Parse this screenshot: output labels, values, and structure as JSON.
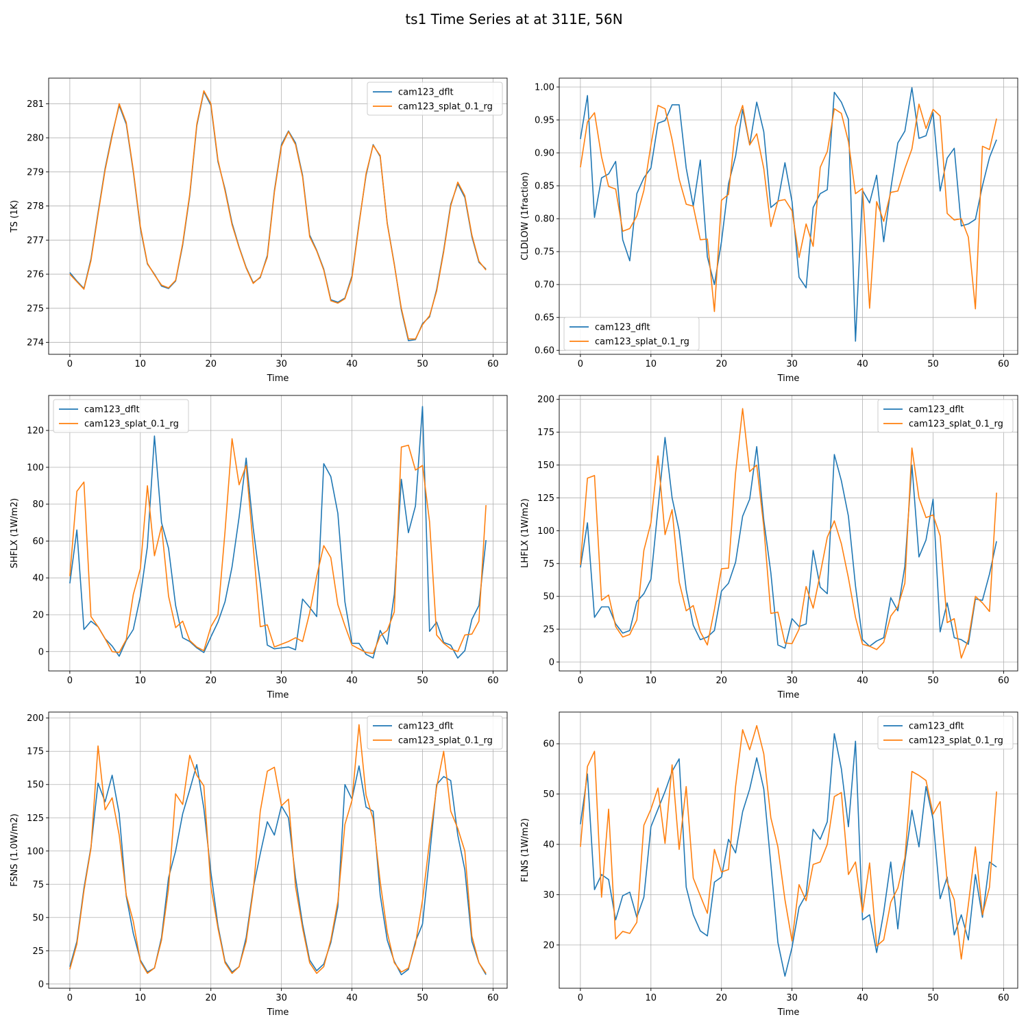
{
  "figure": {
    "title": "ts1 Time Series at at 311E, 56N"
  },
  "colors": {
    "series1": "#1f77b4",
    "series2": "#ff7f0e",
    "grid": "#b0b0b0"
  },
  "chart_data": [
    {
      "type": "line",
      "ylabel": "TS (1K)",
      "xlabel": "Time",
      "legend": "top-right",
      "xlim": [
        -3,
        62
      ],
      "ylim": [
        273.65,
        281.75
      ],
      "xticks": [
        0,
        10,
        20,
        30,
        40,
        50,
        60
      ],
      "yticks": [
        274,
        275,
        276,
        277,
        278,
        279,
        280,
        281
      ],
      "grid": true,
      "series": [
        {
          "name": "cam123_dflt",
          "values": [
            276.05,
            275.8,
            275.58,
            276.45,
            277.8,
            279.1,
            280.1,
            280.95,
            280.4,
            279.0,
            277.35,
            276.3,
            276.0,
            275.65,
            275.58,
            275.8,
            276.85,
            278.3,
            280.35,
            281.35,
            280.95,
            279.3,
            278.5,
            277.5,
            276.8,
            276.2,
            275.75,
            275.9,
            276.55,
            278.45,
            279.8,
            280.2,
            279.85,
            278.9,
            277.15,
            276.7,
            276.15,
            275.25,
            275.18,
            275.3,
            275.95,
            277.5,
            278.9,
            279.8,
            279.45,
            277.5,
            276.3,
            274.95,
            274.05,
            274.08,
            274.55,
            274.75,
            275.55,
            276.7,
            278.05,
            278.65,
            278.25,
            277.1,
            276.35,
            276.15
          ]
        },
        {
          "name": "cam123_splat_0.1_rg",
          "values": [
            276.0,
            275.78,
            275.56,
            276.4,
            277.75,
            279.05,
            280.05,
            281.0,
            280.45,
            279.05,
            277.4,
            276.32,
            275.98,
            275.68,
            275.6,
            275.82,
            276.9,
            278.35,
            280.4,
            281.38,
            281.0,
            279.35,
            278.45,
            277.45,
            276.78,
            276.18,
            275.73,
            275.92,
            276.5,
            278.4,
            279.75,
            280.18,
            279.8,
            278.85,
            277.1,
            276.68,
            276.12,
            275.22,
            275.15,
            275.28,
            275.9,
            277.45,
            278.95,
            279.78,
            279.48,
            277.48,
            276.28,
            275.0,
            274.1,
            274.1,
            274.52,
            274.78,
            275.5,
            276.65,
            278.0,
            278.7,
            278.3,
            277.15,
            276.38,
            276.12
          ]
        }
      ]
    },
    {
      "type": "line",
      "ylabel": "CLDLOW (1fraction)",
      "xlabel": "Time",
      "legend": "bottom-left",
      "xlim": [
        -3,
        62
      ],
      "ylim": [
        0.594,
        1.0135
      ],
      "xticks": [
        0,
        10,
        20,
        30,
        40,
        50,
        60
      ],
      "yticks": [
        0.6,
        0.65,
        0.7,
        0.75,
        0.8,
        0.85,
        0.9,
        0.95,
        1.0
      ],
      "ytick_labels": [
        "0.60",
        "0.65",
        "0.70",
        "0.75",
        "0.80",
        "0.85",
        "0.90",
        "0.95",
        "1.00"
      ],
      "grid": true,
      "series": [
        {
          "name": "cam123_dflt",
          "values": [
            0.921,
            0.987,
            0.802,
            0.862,
            0.868,
            0.887,
            0.768,
            0.736,
            0.838,
            0.862,
            0.877,
            0.945,
            0.949,
            0.973,
            0.973,
            0.877,
            0.819,
            0.889,
            0.742,
            0.7,
            0.765,
            0.853,
            0.895,
            0.966,
            0.912,
            0.977,
            0.932,
            0.817,
            0.826,
            0.885,
            0.826,
            0.711,
            0.695,
            0.817,
            0.838,
            0.844,
            0.992,
            0.977,
            0.951,
            0.614,
            0.843,
            0.824,
            0.866,
            0.765,
            0.845,
            0.915,
            0.933,
            0.999,
            0.922,
            0.926,
            0.961,
            0.842,
            0.892,
            0.907,
            0.789,
            0.792,
            0.799,
            0.85,
            0.893,
            0.92
          ]
        },
        {
          "name": "cam123_splat_0.1_rg",
          "values": [
            0.878,
            0.947,
            0.961,
            0.894,
            0.849,
            0.845,
            0.781,
            0.785,
            0.804,
            0.843,
            0.912,
            0.972,
            0.967,
            0.92,
            0.86,
            0.822,
            0.819,
            0.768,
            0.769,
            0.659,
            0.828,
            0.837,
            0.94,
            0.972,
            0.912,
            0.929,
            0.876,
            0.788,
            0.827,
            0.829,
            0.812,
            0.741,
            0.792,
            0.758,
            0.878,
            0.902,
            0.967,
            0.96,
            0.917,
            0.838,
            0.846,
            0.664,
            0.826,
            0.796,
            0.84,
            0.842,
            0.876,
            0.906,
            0.974,
            0.937,
            0.966,
            0.956,
            0.808,
            0.798,
            0.8,
            0.772,
            0.663,
            0.91,
            0.905,
            0.952
          ]
        }
      ]
    },
    {
      "type": "line",
      "ylabel": "SHFLX (1W/m2)",
      "xlabel": "Time",
      "legend": "top-left",
      "xlim": [
        -3,
        62
      ],
      "ylim": [
        -10.5,
        139
      ],
      "xticks": [
        0,
        10,
        20,
        30,
        40,
        50,
        60
      ],
      "yticks": [
        0,
        20,
        40,
        60,
        80,
        100,
        120
      ],
      "grid": true,
      "series": [
        {
          "name": "cam123_dflt",
          "values": [
            37,
            66,
            12,
            16.5,
            13.5,
            7,
            3,
            -2.5,
            6,
            12,
            30,
            57,
            117,
            70,
            56,
            25,
            7.5,
            5.5,
            2,
            -0.5,
            8,
            16,
            27,
            46,
            73,
            105,
            67,
            37,
            3.5,
            1.5,
            2,
            2.5,
            1,
            28.5,
            24,
            19,
            102,
            95,
            75,
            27,
            4.5,
            4.5,
            -1.5,
            -3.5,
            11.5,
            4,
            31,
            93.5,
            64.5,
            79,
            133,
            11,
            16,
            5,
            3.5,
            -3.5,
            0.5,
            17.5,
            25,
            60.5
          ]
        },
        {
          "name": "cam123_splat_0.1_rg",
          "values": [
            41,
            87,
            92,
            19,
            13.5,
            7,
            0,
            -0.5,
            6.5,
            31,
            45,
            90,
            52,
            68,
            30,
            13,
            16.5,
            6,
            2.5,
            0.5,
            13.5,
            20,
            65,
            115.5,
            90.5,
            101,
            57,
            13.5,
            14.5,
            2.5,
            4,
            5.5,
            7.5,
            5.5,
            21,
            41,
            57.5,
            51,
            25.5,
            14,
            3.5,
            1.5,
            -0.5,
            -1,
            8.5,
            11.5,
            21.5,
            111,
            112,
            98.5,
            101,
            70.5,
            9,
            4.5,
            1.5,
            0,
            9,
            9.5,
            16.5,
            79.5
          ]
        }
      ]
    },
    {
      "type": "line",
      "ylabel": "LHFLX (1W/m2)",
      "xlabel": "Time",
      "legend": "top-right",
      "xlim": [
        -3,
        62
      ],
      "ylim": [
        -6.8,
        203
      ],
      "xticks": [
        0,
        10,
        20,
        30,
        40,
        50,
        60
      ],
      "yticks": [
        0,
        25,
        50,
        75,
        100,
        125,
        150,
        175,
        200
      ],
      "grid": true,
      "series": [
        {
          "name": "cam123_dflt",
          "values": [
            72,
            106,
            34,
            42,
            42,
            29,
            22,
            24,
            46,
            52,
            63,
            117,
            171,
            125,
            100,
            55,
            28,
            17,
            19,
            24,
            54,
            60,
            76,
            111,
            124,
            164,
            108,
            68,
            13,
            10.5,
            33,
            27,
            29,
            85,
            57,
            52,
            158,
            138,
            111,
            58,
            17,
            12,
            16,
            18.5,
            49,
            39,
            73,
            150,
            80,
            93,
            124,
            23,
            45,
            18.5,
            17,
            13.5,
            48,
            47,
            67,
            92
          ]
        },
        {
          "name": "cam123_splat_0.1_rg",
          "values": [
            74,
            140,
            142,
            47,
            51,
            27,
            19,
            21,
            32,
            85,
            106,
            157,
            97,
            116,
            61,
            39,
            43,
            23,
            13,
            40,
            71,
            71.5,
            144,
            193,
            145,
            150,
            103,
            37,
            38,
            14.5,
            14,
            25,
            57.5,
            41,
            67,
            95,
            107.5,
            90,
            64,
            34,
            13.5,
            12,
            9.5,
            15,
            35,
            42,
            60,
            163,
            125,
            110,
            112,
            96,
            30,
            33,
            3,
            17,
            50,
            45,
            38.5,
            129
          ]
        }
      ]
    },
    {
      "type": "line",
      "ylabel": "FSNS (1.0W/m2)",
      "xlabel": "Time",
      "legend": "top-right",
      "xlim": [
        -3,
        62
      ],
      "ylim": [
        -3.2,
        204.5
      ],
      "xticks": [
        0,
        10,
        20,
        30,
        40,
        50,
        60
      ],
      "yticks": [
        0,
        25,
        50,
        75,
        100,
        125,
        150,
        175,
        200
      ],
      "grid": true,
      "series": [
        {
          "name": "cam123_dflt",
          "values": [
            13,
            32,
            72,
            103,
            151,
            137,
            157,
            128,
            66,
            38,
            18,
            9,
            12,
            35,
            80,
            100,
            128,
            146,
            165,
            132,
            84,
            44,
            17,
            9,
            13,
            35,
            72,
            98,
            122,
            112,
            134,
            125,
            80,
            45,
            18,
            10,
            15,
            31,
            58,
            150,
            139,
            164,
            133,
            130,
            67,
            33,
            17,
            7,
            11,
            32,
            45,
            96,
            150,
            156,
            153,
            112,
            86,
            32,
            16,
            7
          ]
        },
        {
          "name": "cam123_splat_0.1_rg",
          "values": [
            11,
            30,
            70,
            102,
            179,
            131,
            140,
            112,
            67,
            47,
            17,
            8,
            12,
            33,
            72,
            143,
            135,
            172,
            157,
            149,
            73,
            42,
            16,
            8,
            13,
            32,
            70,
            130,
            160,
            163,
            134,
            139,
            73,
            42,
            16,
            8,
            13,
            33,
            62,
            120,
            138,
            195,
            142,
            124,
            77,
            39,
            16,
            9,
            12,
            30,
            63,
            107,
            148,
            175,
            130,
            117,
            100,
            36,
            16,
            8
          ]
        }
      ]
    },
    {
      "type": "line",
      "ylabel": "FLNS (1W/m2)",
      "xlabel": "Time",
      "legend": "top-right",
      "xlim": [
        -3,
        62
      ],
      "ylim": [
        11.4,
        66.3
      ],
      "xticks": [
        0,
        10,
        20,
        30,
        40,
        50,
        60
      ],
      "yticks": [
        20,
        30,
        40,
        50,
        60
      ],
      "grid": true,
      "series": [
        {
          "name": "cam123_dflt",
          "values": [
            44,
            54,
            31,
            34,
            33,
            25,
            29.8,
            30.5,
            25.5,
            29.5,
            43.5,
            47,
            50.5,
            54.5,
            57,
            31.5,
            26,
            22.8,
            21.8,
            32.5,
            33.5,
            41,
            38.3,
            46.5,
            51,
            57.2,
            51,
            36,
            20.5,
            13.8,
            19.5,
            27.5,
            30,
            43,
            41,
            44.5,
            62,
            55,
            43.5,
            60.5,
            25,
            26,
            18.5,
            26.5,
            36.5,
            23.2,
            36.5,
            46.8,
            39.5,
            51.5,
            45,
            29.2,
            33.5,
            22,
            26,
            21,
            34,
            25.5,
            36.5,
            35.5
          ]
        },
        {
          "name": "cam123_splat_0.1_rg",
          "values": [
            39.5,
            55.5,
            58.5,
            29.5,
            47,
            21.2,
            22.7,
            22.3,
            24.5,
            43.8,
            47,
            51.2,
            40.2,
            55.8,
            39,
            51.5,
            33.3,
            29.8,
            26.3,
            39,
            34.5,
            35,
            51.5,
            62.8,
            58.8,
            63.6,
            58,
            45.3,
            39.5,
            29,
            20.8,
            32,
            28.8,
            36,
            36.5,
            40,
            49.5,
            50.3,
            34,
            36.5,
            26.5,
            36.3,
            19.8,
            21,
            28.5,
            31.3,
            37.3,
            54.5,
            53.7,
            52.7,
            46,
            48.5,
            32.5,
            29,
            17.2,
            28,
            39.5,
            26,
            31.5,
            50.5
          ]
        }
      ]
    }
  ]
}
